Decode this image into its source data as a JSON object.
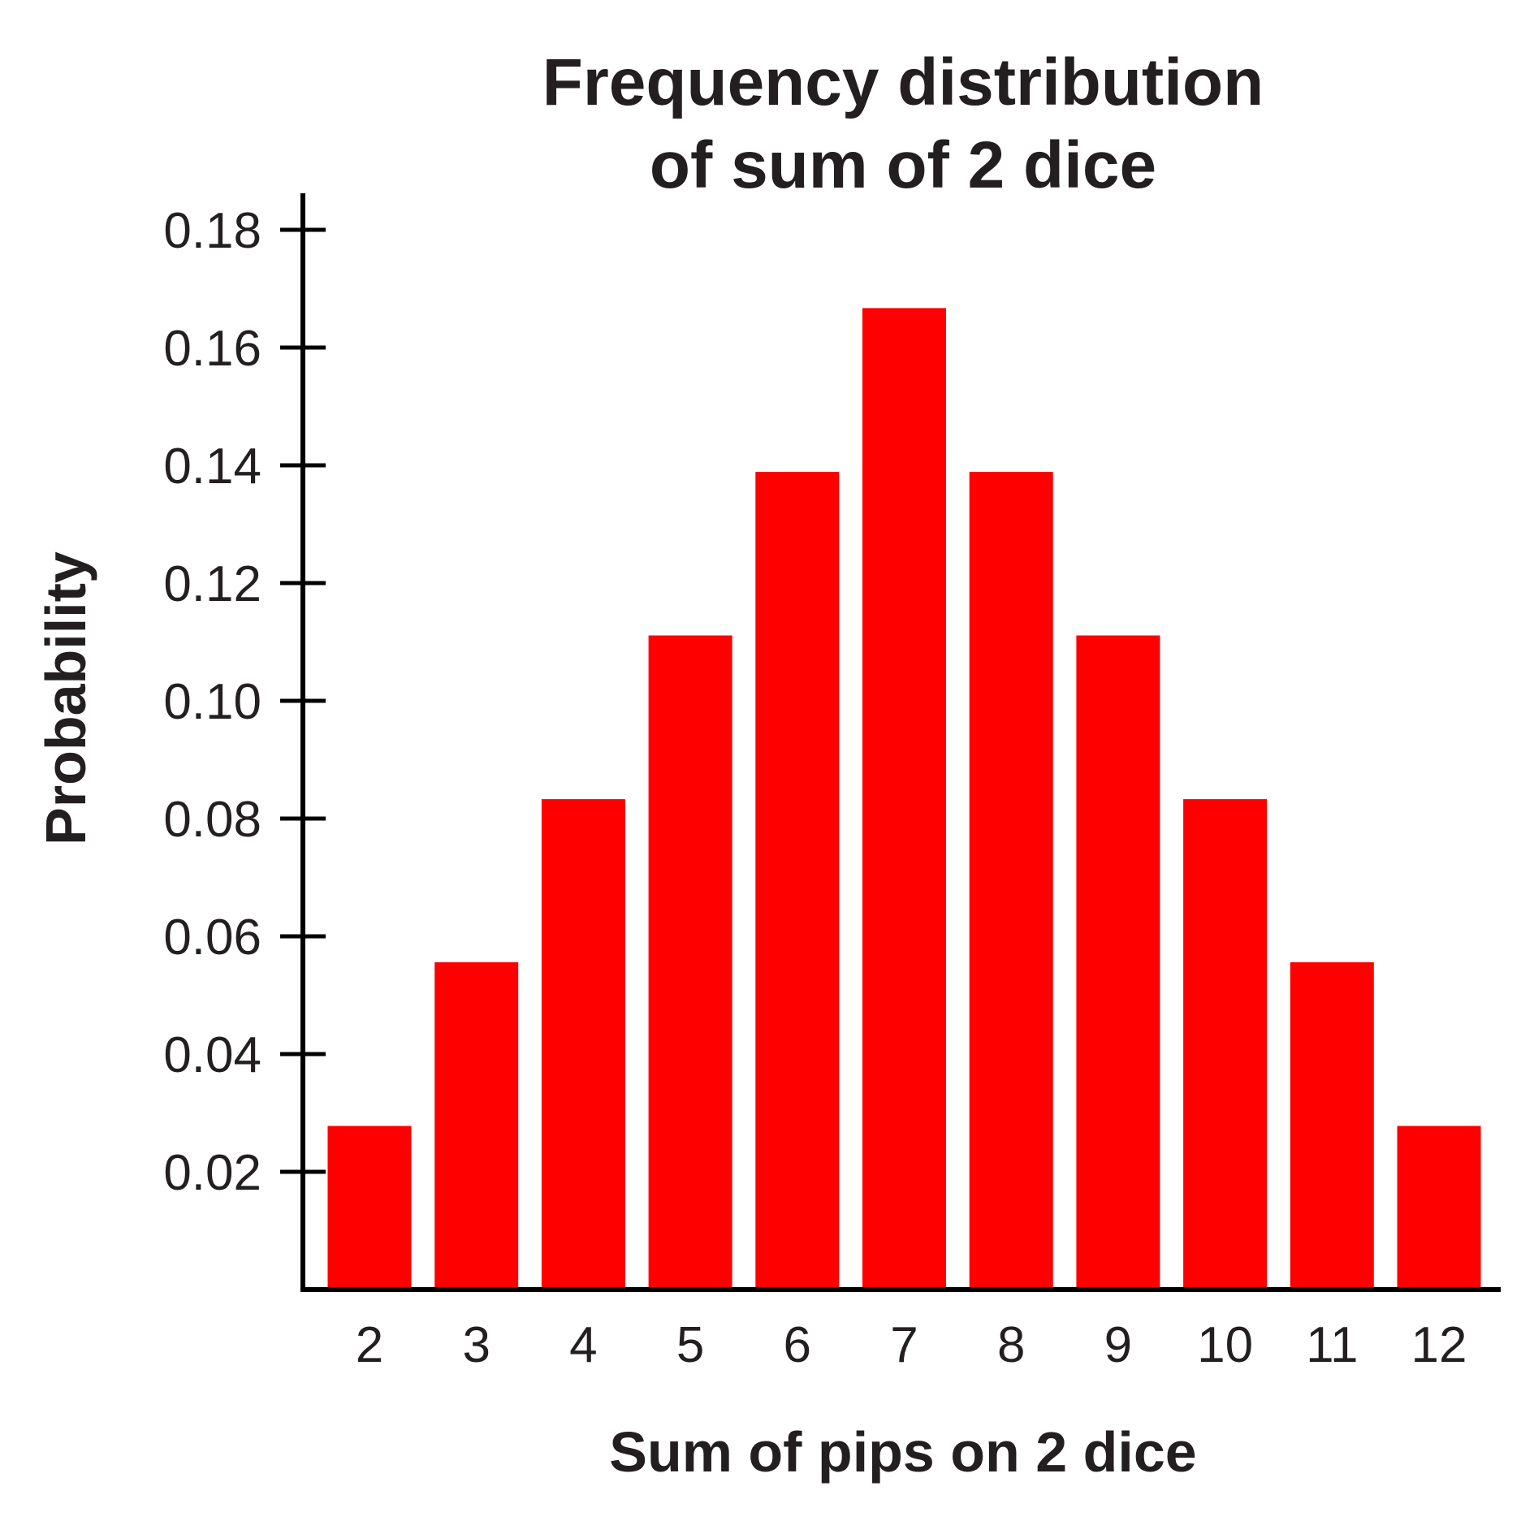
{
  "chart_data": {
    "type": "bar",
    "title_lines": [
      "Frequency distribution",
      "of sum of 2 dice"
    ],
    "xlabel": "Sum of pips on 2 dice",
    "ylabel": "Probability",
    "categories": [
      "2",
      "3",
      "4",
      "5",
      "6",
      "7",
      "8",
      "9",
      "10",
      "11",
      "12"
    ],
    "values": [
      0.0278,
      0.0556,
      0.0833,
      0.1111,
      0.1389,
      0.1667,
      0.1389,
      0.1111,
      0.0833,
      0.0556,
      0.0278
    ],
    "yticks": [
      "0.02",
      "0.04",
      "0.06",
      "0.08",
      "0.10",
      "0.12",
      "0.14",
      "0.16",
      "0.18"
    ],
    "ylim": [
      0,
      0.185
    ],
    "grid": false,
    "legend": "none",
    "bar_color": "#ff0000",
    "axis_color": "#000000"
  }
}
